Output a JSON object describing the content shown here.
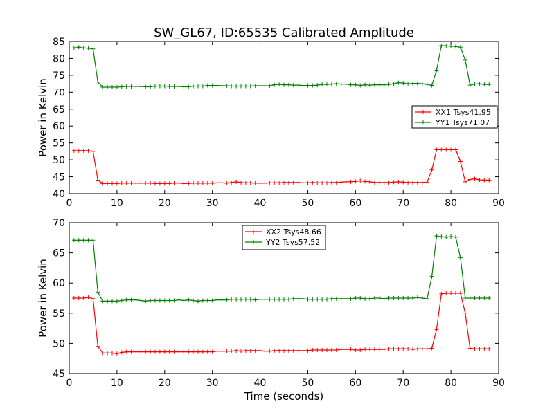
{
  "figure": {
    "title": "SW_GL67, ID:65535 Calibrated Amplitude",
    "xlabel": "Time (seconds)"
  },
  "colors": {
    "red": "#ff0000",
    "green": "#008000"
  },
  "chart_data": [
    {
      "type": "line",
      "ylabel": "Power in Kelvin",
      "xlim": [
        0,
        90
      ],
      "ylim": [
        40,
        85
      ],
      "xticks": [
        0,
        10,
        20,
        30,
        40,
        50,
        60,
        70,
        80,
        90
      ],
      "yticks": [
        40,
        45,
        50,
        55,
        60,
        65,
        70,
        75,
        80,
        85
      ],
      "legend_position": "center-right",
      "series": [
        {
          "name": "XX1 Tsys41.95",
          "color": "#ff0000",
          "x": [
            1,
            2,
            3,
            4,
            5,
            6,
            7,
            8,
            9,
            10,
            11,
            12,
            13,
            14,
            15,
            16,
            17,
            18,
            19,
            20,
            21,
            22,
            23,
            24,
            25,
            26,
            27,
            28,
            29,
            30,
            31,
            32,
            33,
            34,
            35,
            36,
            37,
            38,
            39,
            40,
            41,
            42,
            43,
            44,
            45,
            46,
            47,
            48,
            49,
            50,
            51,
            52,
            53,
            54,
            55,
            56,
            57,
            58,
            59,
            60,
            61,
            62,
            63,
            64,
            65,
            66,
            67,
            68,
            69,
            70,
            71,
            72,
            73,
            74,
            75,
            76,
            77,
            78,
            79,
            80,
            81,
            82,
            83,
            84,
            85,
            86,
            87,
            88
          ],
          "values": [
            52.7,
            52.7,
            52.7,
            52.7,
            52.5,
            44.0,
            43.0,
            43.0,
            43.0,
            43.0,
            43.1,
            43.1,
            43.1,
            43.1,
            43.1,
            43.1,
            43.1,
            43.0,
            43.0,
            43.0,
            43.0,
            43.1,
            43.1,
            43.0,
            43.0,
            43.1,
            43.1,
            43.1,
            43.1,
            43.1,
            43.2,
            43.2,
            43.1,
            43.3,
            43.5,
            43.3,
            43.2,
            43.2,
            43.1,
            43.1,
            43.1,
            43.2,
            43.2,
            43.2,
            43.3,
            43.3,
            43.3,
            43.3,
            43.2,
            43.2,
            43.3,
            43.2,
            43.2,
            43.2,
            43.3,
            43.3,
            43.4,
            43.5,
            43.5,
            43.6,
            43.8,
            43.6,
            43.5,
            43.3,
            43.3,
            43.3,
            43.3,
            43.4,
            43.5,
            43.4,
            43.3,
            43.3,
            43.3,
            43.3,
            43.4,
            47.0,
            53.0,
            53.0,
            53.0,
            53.0,
            53.0,
            49.5,
            43.5,
            44.2,
            44.4,
            44.1,
            44.0,
            44.0
          ]
        },
        {
          "name": "YY1 Tsys71.07",
          "color": "#008000",
          "x": [
            1,
            2,
            3,
            4,
            5,
            6,
            7,
            8,
            9,
            10,
            11,
            12,
            13,
            14,
            15,
            16,
            17,
            18,
            19,
            20,
            21,
            22,
            23,
            24,
            25,
            26,
            27,
            28,
            29,
            30,
            31,
            32,
            33,
            34,
            35,
            36,
            37,
            38,
            39,
            40,
            41,
            42,
            43,
            44,
            45,
            46,
            47,
            48,
            49,
            50,
            51,
            52,
            53,
            54,
            55,
            56,
            57,
            58,
            59,
            60,
            61,
            62,
            63,
            64,
            65,
            66,
            67,
            68,
            69,
            70,
            71,
            72,
            73,
            74,
            75,
            76,
            77,
            78,
            79,
            80,
            81,
            82,
            83,
            84,
            85,
            86,
            87,
            88
          ],
          "values": [
            83.1,
            83.3,
            83.1,
            83.0,
            82.8,
            73.0,
            71.5,
            71.5,
            71.5,
            71.5,
            71.6,
            71.7,
            71.7,
            71.7,
            71.7,
            71.6,
            71.6,
            71.8,
            71.8,
            71.8,
            71.7,
            71.7,
            71.7,
            71.6,
            71.6,
            71.8,
            71.8,
            71.8,
            72.0,
            72.0,
            72.0,
            71.9,
            71.9,
            71.8,
            71.8,
            71.8,
            71.8,
            71.8,
            71.9,
            71.9,
            71.9,
            71.9,
            72.2,
            72.3,
            72.2,
            72.2,
            72.1,
            72.1,
            72.0,
            72.0,
            72.0,
            72.1,
            72.3,
            72.3,
            72.4,
            72.5,
            72.4,
            72.4,
            72.2,
            72.2,
            72.0,
            72.2,
            72.1,
            72.2,
            72.2,
            72.2,
            72.3,
            72.5,
            72.8,
            72.7,
            72.5,
            72.6,
            72.6,
            72.5,
            72.3,
            72.0,
            76.5,
            83.8,
            83.7,
            83.6,
            83.5,
            83.3,
            79.5,
            72.1,
            72.4,
            72.5,
            72.3,
            72.3
          ]
        }
      ]
    },
    {
      "type": "line",
      "ylabel": "Power in Kelvin",
      "xlabel": "Time (seconds)",
      "xlim": [
        0,
        90
      ],
      "ylim": [
        45,
        70
      ],
      "xticks": [
        0,
        10,
        20,
        30,
        40,
        50,
        60,
        70,
        80,
        90
      ],
      "yticks": [
        45,
        50,
        55,
        60,
        65,
        70
      ],
      "legend_position": "top-center",
      "series": [
        {
          "name": "XX2 Tsys48.66",
          "color": "#ff0000",
          "x": [
            1,
            2,
            3,
            4,
            5,
            6,
            7,
            8,
            9,
            10,
            11,
            12,
            13,
            14,
            15,
            16,
            17,
            18,
            19,
            20,
            21,
            22,
            23,
            24,
            25,
            26,
            27,
            28,
            29,
            30,
            31,
            32,
            33,
            34,
            35,
            36,
            37,
            38,
            39,
            40,
            41,
            42,
            43,
            44,
            45,
            46,
            47,
            48,
            49,
            50,
            51,
            52,
            53,
            54,
            55,
            56,
            57,
            58,
            59,
            60,
            61,
            62,
            63,
            64,
            65,
            66,
            67,
            68,
            69,
            70,
            71,
            72,
            73,
            74,
            75,
            76,
            77,
            78,
            79,
            80,
            81,
            82,
            83,
            84,
            85,
            86,
            87,
            88
          ],
          "values": [
            57.5,
            57.5,
            57.5,
            57.6,
            57.4,
            49.5,
            48.4,
            48.4,
            48.4,
            48.3,
            48.5,
            48.6,
            48.6,
            48.6,
            48.6,
            48.6,
            48.6,
            48.6,
            48.6,
            48.6,
            48.6,
            48.6,
            48.6,
            48.6,
            48.6,
            48.6,
            48.6,
            48.6,
            48.6,
            48.6,
            48.7,
            48.7,
            48.7,
            48.7,
            48.8,
            48.7,
            48.8,
            48.8,
            48.8,
            48.8,
            48.7,
            48.7,
            48.8,
            48.8,
            48.8,
            48.8,
            48.8,
            48.8,
            48.8,
            48.8,
            48.9,
            48.9,
            48.9,
            48.9,
            48.9,
            48.9,
            49.0,
            49.0,
            49.0,
            48.9,
            48.9,
            49.0,
            49.0,
            49.0,
            49.0,
            49.0,
            49.1,
            49.1,
            49.1,
            49.1,
            49.1,
            49.0,
            49.1,
            49.1,
            49.1,
            49.2,
            52.3,
            58.2,
            58.3,
            58.3,
            58.3,
            58.3,
            55.0,
            49.2,
            49.1,
            49.1,
            49.1,
            49.1
          ]
        },
        {
          "name": "YY2 Tsys57.52",
          "color": "#008000",
          "x": [
            1,
            2,
            3,
            4,
            5,
            6,
            7,
            8,
            9,
            10,
            11,
            12,
            13,
            14,
            15,
            16,
            17,
            18,
            19,
            20,
            21,
            22,
            23,
            24,
            25,
            26,
            27,
            28,
            29,
            30,
            31,
            32,
            33,
            34,
            35,
            36,
            37,
            38,
            39,
            40,
            41,
            42,
            43,
            44,
            45,
            46,
            47,
            48,
            49,
            50,
            51,
            52,
            53,
            54,
            55,
            56,
            57,
            58,
            59,
            60,
            61,
            62,
            63,
            64,
            65,
            66,
            67,
            68,
            69,
            70,
            71,
            72,
            73,
            74,
            75,
            76,
            77,
            78,
            79,
            80,
            81,
            82,
            83,
            84,
            85,
            86,
            87,
            88
          ],
          "values": [
            67.1,
            67.1,
            67.1,
            67.1,
            67.1,
            58.5,
            57.0,
            57.0,
            57.0,
            57.0,
            57.1,
            57.2,
            57.2,
            57.2,
            57.1,
            57.0,
            57.1,
            57.1,
            57.1,
            57.1,
            57.1,
            57.1,
            57.2,
            57.1,
            57.2,
            57.1,
            57.0,
            57.1,
            57.1,
            57.1,
            57.2,
            57.2,
            57.2,
            57.3,
            57.3,
            57.3,
            57.3,
            57.3,
            57.2,
            57.3,
            57.3,
            57.3,
            57.3,
            57.3,
            57.3,
            57.3,
            57.4,
            57.4,
            57.4,
            57.3,
            57.3,
            57.3,
            57.3,
            57.3,
            57.4,
            57.4,
            57.4,
            57.4,
            57.4,
            57.5,
            57.5,
            57.4,
            57.4,
            57.5,
            57.5,
            57.4,
            57.5,
            57.5,
            57.5,
            57.5,
            57.5,
            57.5,
            57.6,
            57.5,
            57.4,
            61.1,
            67.8,
            67.7,
            67.6,
            67.7,
            67.6,
            64.2,
            57.5,
            57.5,
            57.5,
            57.5,
            57.5,
            57.5
          ]
        }
      ]
    }
  ]
}
